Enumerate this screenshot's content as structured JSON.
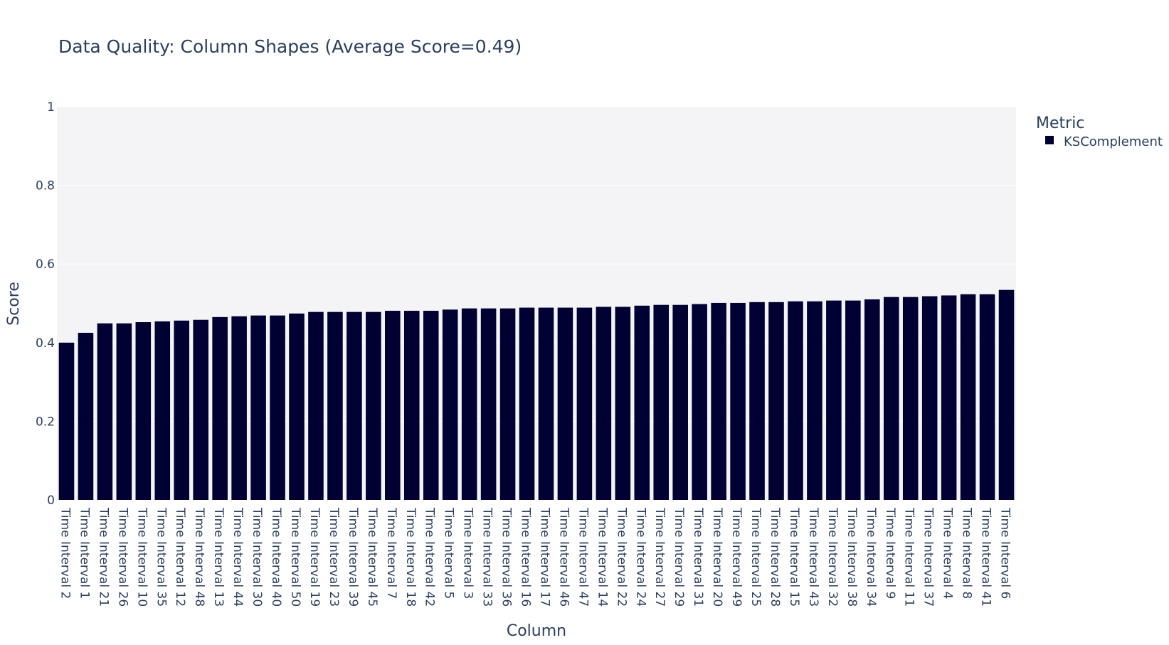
{
  "chart_data": {
    "type": "bar",
    "title": "Data Quality: Column Shapes (Average Score=0.49)",
    "xlabel": "Column",
    "ylabel": "Score",
    "ylim": [
      0,
      1
    ],
    "yticks": [
      0,
      0.2,
      0.4,
      0.6,
      0.8,
      1
    ],
    "ytick_labels": [
      "0",
      "0.2",
      "0.4",
      "0.6",
      "0.8",
      "1"
    ],
    "grid": true,
    "legend": {
      "title": "Metric",
      "placement": "top-right",
      "entries": [
        "KSComplement"
      ]
    },
    "categories": [
      "Time Interval 2",
      "Time Interval 1",
      "Time Interval 21",
      "Time Interval 26",
      "Time Interval 10",
      "Time Interval 35",
      "Time Interval 12",
      "Time Interval 48",
      "Time Interval 13",
      "Time Interval 44",
      "Time Interval 30",
      "Time Interval 40",
      "Time Interval 50",
      "Time Interval 19",
      "Time Interval 23",
      "Time Interval 39",
      "Time Interval 45",
      "Time Interval 7",
      "Time Interval 18",
      "Time Interval 42",
      "Time Interval 5",
      "Time Interval 3",
      "Time Interval 33",
      "Time Interval 36",
      "Time Interval 16",
      "Time Interval 17",
      "Time Interval 46",
      "Time Interval 47",
      "Time Interval 14",
      "Time Interval 22",
      "Time Interval 24",
      "Time Interval 27",
      "Time Interval 29",
      "Time Interval 31",
      "Time Interval 20",
      "Time Interval 49",
      "Time Interval 25",
      "Time Interval 28",
      "Time Interval 15",
      "Time Interval 43",
      "Time Interval 32",
      "Time Interval 38",
      "Time Interval 34",
      "Time Interval 9",
      "Time Interval 11",
      "Time Interval 37",
      "Time Interval 4",
      "Time Interval 8",
      "Time Interval 41",
      "Time Interval 6"
    ],
    "series": [
      {
        "name": "KSComplement",
        "color": "#000033",
        "values": [
          0.4,
          0.425,
          0.449,
          0.449,
          0.452,
          0.454,
          0.456,
          0.458,
          0.465,
          0.467,
          0.469,
          0.469,
          0.474,
          0.478,
          0.478,
          0.478,
          0.478,
          0.481,
          0.481,
          0.481,
          0.484,
          0.487,
          0.487,
          0.487,
          0.489,
          0.489,
          0.489,
          0.489,
          0.491,
          0.491,
          0.494,
          0.496,
          0.496,
          0.498,
          0.501,
          0.501,
          0.503,
          0.503,
          0.505,
          0.505,
          0.507,
          0.507,
          0.51,
          0.516,
          0.516,
          0.518,
          0.52,
          0.523,
          0.523,
          0.534
        ]
      }
    ]
  }
}
